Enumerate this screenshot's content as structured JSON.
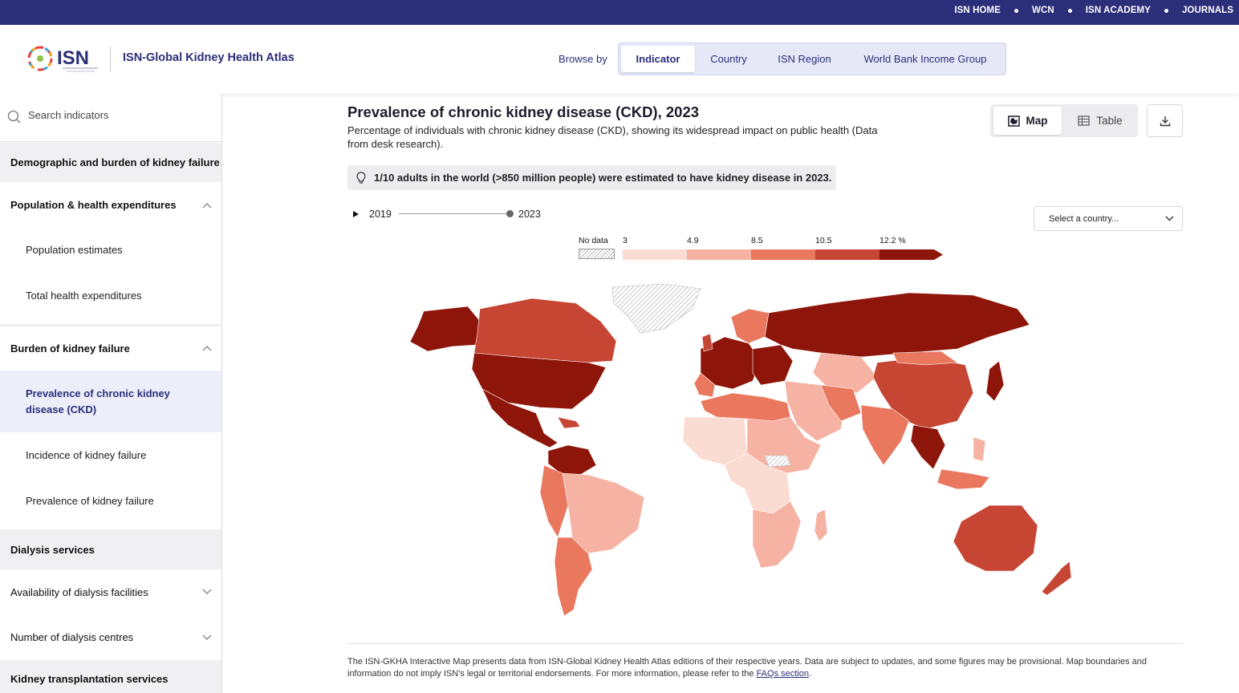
{
  "topbar": {
    "links": [
      "ISN HOME",
      "WCN",
      "ISN ACADEMY",
      "JOURNALS"
    ]
  },
  "header": {
    "logo_text": "ISN",
    "atlas_title": "ISN-Global Kidney Health Atlas",
    "browse_label": "Browse by",
    "browse_tabs": [
      "Indicator",
      "Country",
      "ISN Region",
      "World Bank Income Group"
    ],
    "active_tab": "Indicator"
  },
  "sidebar": {
    "search_placeholder": "Search indicators",
    "sections": [
      {
        "label": "Demographic and burden of kidney failure"
      },
      {
        "label": "Population & health expenditures"
      },
      {
        "label": "Population estimates"
      },
      {
        "label": "Total health expenditures"
      },
      {
        "label": "Burden of kidney failure"
      },
      {
        "label": "Prevalence of chronic kidney disease (CKD)"
      },
      {
        "label": "Incidence of kidney failure"
      },
      {
        "label": "Prevalence of kidney failure"
      },
      {
        "label": "Dialysis services"
      },
      {
        "label": "Availability of dialysis facilities"
      },
      {
        "label": "Number of dialysis centres"
      },
      {
        "label": "Kidney transplantation services"
      }
    ]
  },
  "main": {
    "title": "Prevalence of chronic kidney disease (CKD), 2023",
    "description": "Percentage of individuals with chronic kidney disease (CKD), showing its widespread impact on public health (Data from desk research).",
    "view_map": "Map",
    "view_table": "Table",
    "fact": "1/10 adults in the world (>850 million people) were estimated to have kidney disease in 2023.",
    "year_start": "2019",
    "year_end": "2023",
    "country_select": "Select a country...",
    "legend": {
      "no_data": "No data",
      "breaks": [
        "3",
        "4.9",
        "8.5",
        "10.5",
        "12.2 %"
      ],
      "colors": [
        "#fbdcd3",
        "#f6b2a2",
        "#e9785f",
        "#c64533",
        "#8e1509"
      ]
    },
    "footer_note": "The ISN-GKHA Interactive Map presents data from ISN-Global Kidney Health Atlas editions of their respective years. Data are subject to updates, and some figures may be provisional. Map boundaries and information do not imply ISN's legal or territorial endorsements. For more information, please refer to the",
    "footer_link": "FAQs section"
  },
  "colors": {
    "brand": "#2b2f7a",
    "accent_light": "#e6e8f7"
  }
}
